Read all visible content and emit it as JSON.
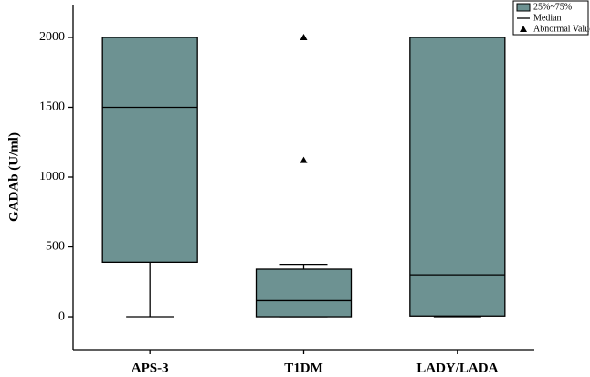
{
  "chart_data": {
    "type": "box",
    "y_label": "GADAb (U/ml)",
    "categories": [
      "APS-3",
      "T1DM",
      "LADY/LADA"
    ],
    "boxes": [
      {
        "min": 0,
        "q1": 390,
        "median": 1500,
        "q3": 2000,
        "max": 2000,
        "outliers": []
      },
      {
        "min": 0,
        "q1": 0,
        "median": 115,
        "q3": 340,
        "max": 375,
        "outliers": [
          2000,
          1120
        ]
      },
      {
        "min": 0,
        "q1": 5,
        "median": 300,
        "q3": 2000,
        "max": 2000,
        "outliers": []
      }
    ],
    "color": "#6d9292",
    "ylim": [
      -235,
      2235
    ],
    "yticks": [
      0,
      500,
      1000,
      1500,
      2000
    ],
    "legend": [
      "25%~75%",
      "Median",
      "Abnormal Value"
    ],
    "legend_position": "upper right"
  }
}
